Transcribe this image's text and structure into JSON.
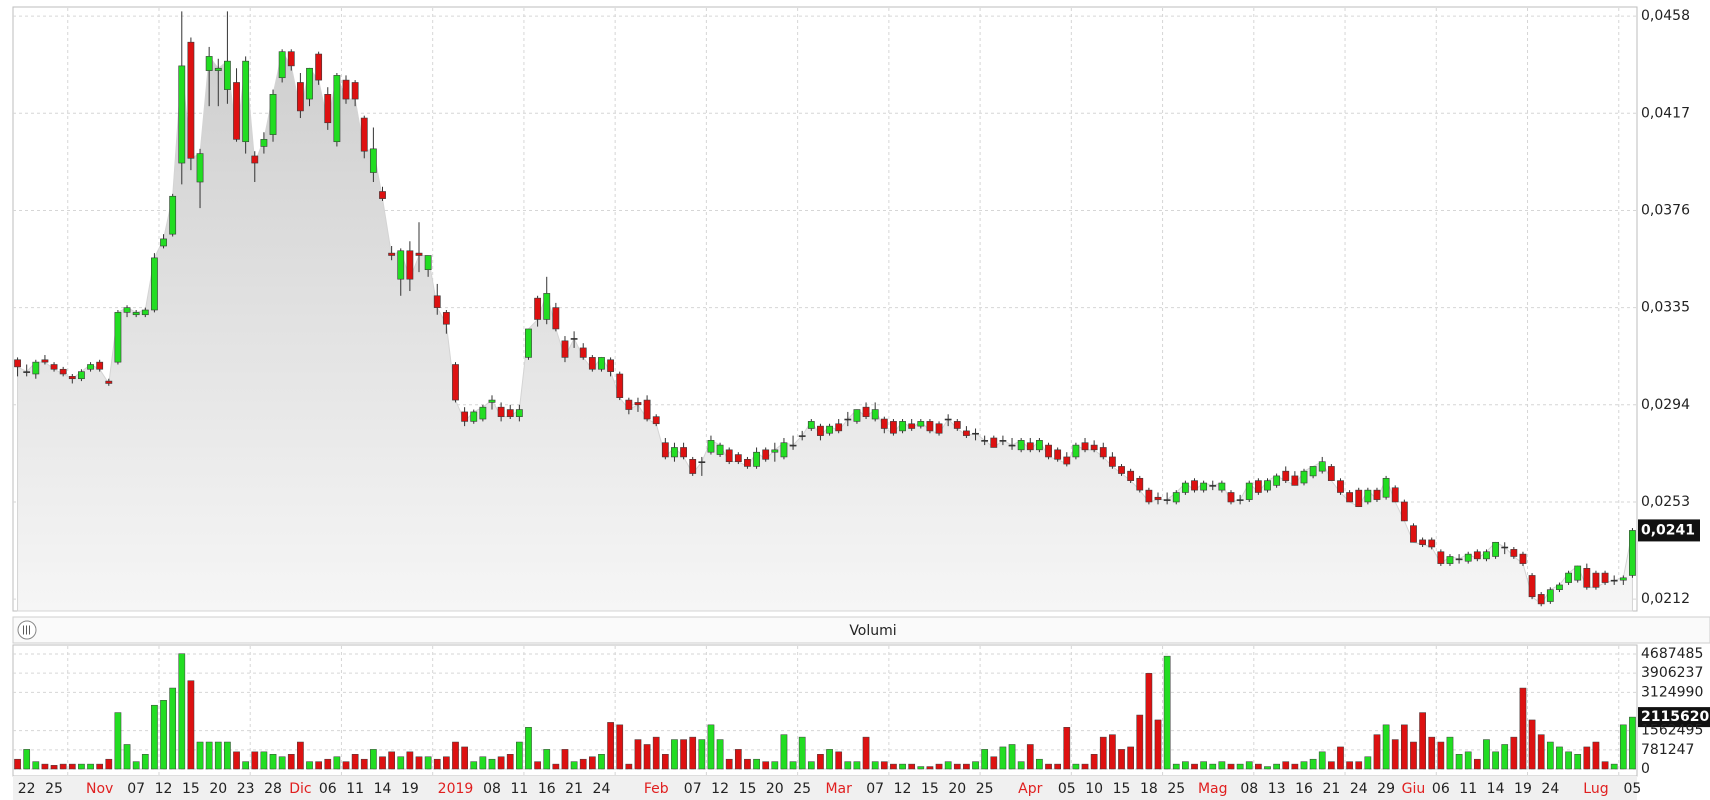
{
  "chart_data": [
    {
      "type": "candlestick",
      "ylim": [
        0.0207,
        0.0461
      ],
      "yticks": [
        {
          "value": 0.0212,
          "label": "0,0212"
        },
        {
          "value": 0.0253,
          "label": "0,0253"
        },
        {
          "value": 0.0294,
          "label": "0,0294"
        },
        {
          "value": 0.0335,
          "label": "0,0335"
        },
        {
          "value": 0.0376,
          "label": "0,0376"
        },
        {
          "value": 0.0417,
          "label": "0,0417"
        },
        {
          "value": 0.0458,
          "label": "0,0458"
        }
      ],
      "price_marker": {
        "value": 0.0241,
        "label": "0,0241"
      },
      "grid": true,
      "up_color": "#22dd22",
      "down_color": "#dd1111",
      "area_color": "#d4d4d4",
      "open": [
        0.0313,
        0.0308,
        0.0307,
        0.0313,
        0.0311,
        0.0309,
        0.0306,
        0.0305,
        0.0309,
        0.0312,
        0.0304,
        0.0312,
        0.0333,
        0.0332,
        0.0332,
        0.0334,
        0.0361,
        0.0366,
        0.0396,
        0.0447,
        0.0388,
        0.0435,
        0.0435,
        0.0427,
        0.043,
        0.0405,
        0.0399,
        0.0403,
        0.0408,
        0.0432,
        0.0443,
        0.043,
        0.0423,
        0.0442,
        0.0425,
        0.0405,
        0.0431,
        0.043,
        0.0415,
        0.0392,
        0.0384,
        0.0358,
        0.0347,
        0.0359,
        0.0358,
        0.0351,
        0.034,
        0.0333,
        0.0311,
        0.0291,
        0.0287,
        0.0288,
        0.0295,
        0.0293,
        0.0292,
        0.0289,
        0.0314,
        0.0339,
        0.033,
        0.0335,
        0.0321,
        0.0322,
        0.0318,
        0.0314,
        0.0309,
        0.0313,
        0.0307,
        0.0296,
        0.0295,
        0.0296,
        0.0289,
        0.0278,
        0.0272,
        0.0276,
        0.0271,
        0.027,
        0.0274,
        0.0273,
        0.0275,
        0.0273,
        0.0271,
        0.0268,
        0.0275,
        0.0274,
        0.0272,
        0.0277,
        0.0281,
        0.0284,
        0.0285,
        0.0282,
        0.0286,
        0.0288,
        0.0287,
        0.0293,
        0.0288,
        0.0288,
        0.0287,
        0.0283,
        0.0286,
        0.0285,
        0.0287,
        0.0286,
        0.0288,
        0.0287,
        0.0283,
        0.0282,
        0.0279,
        0.028,
        0.0279,
        0.0277,
        0.0275,
        0.0278,
        0.0275,
        0.0277,
        0.0275,
        0.0272,
        0.0272,
        0.0278,
        0.0277,
        0.0276,
        0.0272,
        0.0268,
        0.0266,
        0.0263,
        0.0258,
        0.0255,
        0.0254,
        0.0253,
        0.0257,
        0.0262,
        0.0258,
        0.026,
        0.0258,
        0.0257,
        0.0254,
        0.0254,
        0.0262,
        0.0258,
        0.026,
        0.0266,
        0.0264,
        0.0261,
        0.0264,
        0.0266,
        0.0268,
        0.0262,
        0.0257,
        0.0258,
        0.0253,
        0.0258,
        0.0255,
        0.0259,
        0.0253,
        0.0243,
        0.0237,
        0.0237,
        0.0232,
        0.0227,
        0.0229,
        0.0228,
        0.0232,
        0.0229,
        0.023,
        0.0234,
        0.0233,
        0.0231,
        0.0222,
        0.0214,
        0.0211,
        0.0216,
        0.0219,
        0.022,
        0.0225,
        0.0223,
        0.0223,
        0.022,
        0.022,
        0.0222
      ],
      "high": [
        0.0314,
        0.0311,
        0.0313,
        0.0315,
        0.0312,
        0.031,
        0.0307,
        0.0309,
        0.0312,
        0.0313,
        0.0305,
        0.0334,
        0.0336,
        0.0334,
        0.0335,
        0.0358,
        0.0366,
        0.0383,
        0.046,
        0.0449,
        0.0402,
        0.0445,
        0.044,
        0.046,
        0.0436,
        0.0441,
        0.0401,
        0.0409,
        0.0427,
        0.0444,
        0.0444,
        0.0434,
        0.0436,
        0.0443,
        0.0428,
        0.0434,
        0.0433,
        0.0431,
        0.0416,
        0.0411,
        0.0386,
        0.0361,
        0.036,
        0.0363,
        0.0371,
        0.0357,
        0.0345,
        0.0334,
        0.0312,
        0.0293,
        0.0292,
        0.0294,
        0.0298,
        0.0295,
        0.0294,
        0.0294,
        0.0326,
        0.034,
        0.0348,
        0.0337,
        0.0323,
        0.0325,
        0.032,
        0.0315,
        0.0314,
        0.0314,
        0.0308,
        0.0297,
        0.0297,
        0.0298,
        0.029,
        0.028,
        0.0278,
        0.0278,
        0.0272,
        0.0272,
        0.0281,
        0.0278,
        0.0276,
        0.0274,
        0.0272,
        0.0276,
        0.0276,
        0.0278,
        0.028,
        0.0281,
        0.0283,
        0.0288,
        0.0286,
        0.0286,
        0.0288,
        0.0291,
        0.0292,
        0.0295,
        0.0295,
        0.0289,
        0.0288,
        0.0288,
        0.0288,
        0.0288,
        0.0288,
        0.0287,
        0.029,
        0.0288,
        0.0285,
        0.0284,
        0.0281,
        0.0281,
        0.0281,
        0.028,
        0.028,
        0.028,
        0.028,
        0.0278,
        0.0276,
        0.0274,
        0.0278,
        0.028,
        0.0279,
        0.0278,
        0.0274,
        0.0269,
        0.0267,
        0.0264,
        0.0259,
        0.0257,
        0.0257,
        0.0258,
        0.0262,
        0.0263,
        0.0262,
        0.0262,
        0.0262,
        0.0258,
        0.0256,
        0.0262,
        0.0263,
        0.0263,
        0.0265,
        0.0268,
        0.0266,
        0.0267,
        0.0268,
        0.0272,
        0.0269,
        0.0263,
        0.0258,
        0.0259,
        0.0259,
        0.0259,
        0.0264,
        0.026,
        0.0254,
        0.0244,
        0.0238,
        0.0238,
        0.0233,
        0.0231,
        0.0231,
        0.0232,
        0.0233,
        0.0233,
        0.0236,
        0.0236,
        0.0234,
        0.0232,
        0.0223,
        0.0215,
        0.0217,
        0.0219,
        0.0224,
        0.0226,
        0.0227,
        0.0224,
        0.0224,
        0.0222,
        0.0222,
        0.0242
      ],
      "low": [
        0.0306,
        0.0306,
        0.0305,
        0.0311,
        0.0308,
        0.0306,
        0.0303,
        0.0304,
        0.0308,
        0.0308,
        0.0302,
        0.0311,
        0.0331,
        0.0331,
        0.0331,
        0.0333,
        0.036,
        0.0365,
        0.0387,
        0.0393,
        0.0377,
        0.042,
        0.042,
        0.0421,
        0.0405,
        0.04,
        0.0388,
        0.04,
        0.0405,
        0.043,
        0.0435,
        0.0415,
        0.042,
        0.0429,
        0.041,
        0.0403,
        0.0421,
        0.042,
        0.0398,
        0.0388,
        0.038,
        0.0355,
        0.034,
        0.0342,
        0.035,
        0.0348,
        0.0332,
        0.0324,
        0.0295,
        0.0285,
        0.0286,
        0.0287,
        0.0292,
        0.0287,
        0.0288,
        0.0287,
        0.0313,
        0.0327,
        0.0328,
        0.0325,
        0.0312,
        0.0318,
        0.0313,
        0.0308,
        0.0308,
        0.0306,
        0.0296,
        0.029,
        0.0291,
        0.0287,
        0.0285,
        0.0271,
        0.027,
        0.0271,
        0.0264,
        0.0264,
        0.0273,
        0.0272,
        0.0269,
        0.0269,
        0.0267,
        0.0267,
        0.027,
        0.027,
        0.0271,
        0.0275,
        0.0279,
        0.0283,
        0.0279,
        0.0281,
        0.0282,
        0.0285,
        0.0286,
        0.0288,
        0.0287,
        0.0282,
        0.0281,
        0.0282,
        0.0283,
        0.0284,
        0.0282,
        0.0281,
        0.0285,
        0.0283,
        0.028,
        0.0279,
        0.0277,
        0.0276,
        0.0277,
        0.0275,
        0.0274,
        0.0274,
        0.0274,
        0.0271,
        0.027,
        0.0268,
        0.0271,
        0.0274,
        0.0274,
        0.0271,
        0.0267,
        0.0264,
        0.0261,
        0.0257,
        0.0252,
        0.0252,
        0.0252,
        0.0252,
        0.0256,
        0.0257,
        0.0257,
        0.0258,
        0.0257,
        0.0252,
        0.0252,
        0.0253,
        0.0256,
        0.0257,
        0.0259,
        0.0261,
        0.026,
        0.026,
        0.0263,
        0.0265,
        0.0262,
        0.0256,
        0.0253,
        0.0251,
        0.0252,
        0.0253,
        0.0254,
        0.0253,
        0.0245,
        0.0236,
        0.0234,
        0.0233,
        0.0226,
        0.0226,
        0.0227,
        0.0227,
        0.0228,
        0.0228,
        0.0229,
        0.0231,
        0.0229,
        0.0226,
        0.0212,
        0.0209,
        0.021,
        0.0215,
        0.0218,
        0.0219,
        0.0216,
        0.0216,
        0.0218,
        0.0218,
        0.0218,
        0.0221
      ],
      "close": [
        0.031,
        0.0308,
        0.0312,
        0.0312,
        0.0309,
        0.0307,
        0.0305,
        0.0308,
        0.0311,
        0.0309,
        0.0303,
        0.0333,
        0.0335,
        0.0333,
        0.0334,
        0.0356,
        0.0364,
        0.0382,
        0.0437,
        0.0398,
        0.04,
        0.0441,
        0.0436,
        0.0439,
        0.0406,
        0.0439,
        0.0396,
        0.0406,
        0.0425,
        0.0443,
        0.0437,
        0.0418,
        0.0436,
        0.0431,
        0.0413,
        0.0433,
        0.0423,
        0.0423,
        0.0401,
        0.0402,
        0.0381,
        0.0357,
        0.0359,
        0.0347,
        0.0357,
        0.0357,
        0.0335,
        0.0328,
        0.0296,
        0.0287,
        0.0291,
        0.0293,
        0.0296,
        0.0289,
        0.0289,
        0.0292,
        0.0326,
        0.033,
        0.0341,
        0.0326,
        0.0314,
        0.0322,
        0.0314,
        0.0309,
        0.0314,
        0.0308,
        0.0297,
        0.0292,
        0.0294,
        0.0288,
        0.0286,
        0.0272,
        0.0276,
        0.0272,
        0.0265,
        0.027,
        0.0279,
        0.0277,
        0.027,
        0.027,
        0.0268,
        0.0274,
        0.0271,
        0.0275,
        0.0278,
        0.0277,
        0.0281,
        0.0287,
        0.0281,
        0.0285,
        0.0283,
        0.0288,
        0.0292,
        0.0289,
        0.0292,
        0.0284,
        0.0282,
        0.0287,
        0.0284,
        0.0287,
        0.0283,
        0.0282,
        0.0288,
        0.0284,
        0.0281,
        0.0282,
        0.0279,
        0.0276,
        0.0279,
        0.0277,
        0.0279,
        0.0275,
        0.0279,
        0.0272,
        0.0271,
        0.0269,
        0.0277,
        0.0275,
        0.0275,
        0.0272,
        0.0268,
        0.0265,
        0.0262,
        0.0258,
        0.0253,
        0.0254,
        0.0254,
        0.0257,
        0.0261,
        0.0258,
        0.0261,
        0.026,
        0.0261,
        0.0253,
        0.0254,
        0.0261,
        0.0257,
        0.0262,
        0.0264,
        0.0262,
        0.026,
        0.0266,
        0.0268,
        0.027,
        0.0262,
        0.0257,
        0.0253,
        0.0251,
        0.0258,
        0.0254,
        0.0263,
        0.0253,
        0.0245,
        0.0236,
        0.0235,
        0.0234,
        0.0227,
        0.023,
        0.0229,
        0.0231,
        0.0229,
        0.0232,
        0.0236,
        0.0234,
        0.023,
        0.0227,
        0.0213,
        0.021,
        0.0216,
        0.0218,
        0.0223,
        0.0226,
        0.0217,
        0.0217,
        0.0219,
        0.022,
        0.0221,
        0.0241
      ]
    },
    {
      "type": "bar",
      "title": "Volumi",
      "ylim": [
        -285000,
        5054000
      ],
      "yticks": [
        0,
        781247,
        1562495,
        3124990,
        3906237,
        4687485
      ],
      "volume_marker": {
        "value": 2115620,
        "label": "2115620"
      },
      "grid": true,
      "categories": [
        null,
        "22",
        null,
        null,
        "25",
        null,
        null,
        null,
        null,
        "Nov",
        null,
        null,
        null,
        "07",
        null,
        null,
        "12",
        null,
        null,
        "15",
        null,
        null,
        "20",
        null,
        null,
        "23",
        null,
        null,
        "28",
        null,
        null,
        "Dic",
        null,
        null,
        "06",
        null,
        null,
        "11",
        null,
        null,
        "14",
        null,
        null,
        "19",
        null,
        null,
        null,
        null,
        "2019",
        null,
        null,
        null,
        "08",
        null,
        null,
        "11",
        null,
        null,
        "16",
        null,
        null,
        "21",
        null,
        null,
        "24",
        null,
        null,
        null,
        null,
        null,
        "Feb",
        null,
        null,
        null,
        "07",
        null,
        null,
        "12",
        null,
        null,
        "15",
        null,
        null,
        "20",
        null,
        null,
        "25",
        null,
        null,
        null,
        "Mar",
        null,
        null,
        null,
        "07",
        null,
        null,
        "12",
        null,
        null,
        "15",
        null,
        null,
        "20",
        null,
        null,
        "25",
        null,
        null,
        null,
        null,
        "Apr",
        null,
        null,
        null,
        "05",
        null,
        null,
        "10",
        null,
        null,
        "15",
        null,
        null,
        "18",
        null,
        null,
        "25",
        null,
        null,
        null,
        "Mag",
        null,
        null,
        null,
        "08",
        null,
        null,
        "13",
        null,
        null,
        "16",
        null,
        null,
        "21",
        null,
        null,
        "24",
        null,
        null,
        "29",
        null,
        null,
        "Giu",
        null,
        null,
        "06",
        null,
        null,
        "11",
        null,
        null,
        "14",
        null,
        null,
        "19",
        null,
        null,
        "24",
        null,
        null,
        null,
        null,
        "Lug",
        null,
        null,
        null,
        "05"
      ],
      "values": [
        400000,
        800000,
        300000,
        200000,
        150000,
        200000,
        200000,
        200000,
        200000,
        200000,
        400000,
        2300000,
        1000000,
        300000,
        600000,
        2600000,
        2800000,
        3300000,
        4700000,
        3600000,
        1100000,
        1100000,
        1100000,
        1100000,
        700000,
        300000,
        700000,
        700000,
        600000,
        500000,
        600000,
        1100000,
        300000,
        300000,
        400000,
        500000,
        300000,
        600000,
        400000,
        800000,
        500000,
        700000,
        500000,
        700000,
        500000,
        500000,
        400000,
        500000,
        1100000,
        900000,
        300000,
        500000,
        400000,
        500000,
        600000,
        1100000,
        1700000,
        300000,
        800000,
        200000,
        800000,
        300000,
        400000,
        500000,
        600000,
        1900000,
        1800000,
        200000,
        1200000,
        1000000,
        1300000,
        600000,
        1200000,
        1200000,
        1300000,
        1200000,
        1800000,
        1200000,
        400000,
        800000,
        400000,
        400000,
        300000,
        300000,
        1400000,
        300000,
        1300000,
        300000,
        600000,
        800000,
        700000,
        300000,
        300000,
        1300000,
        300000,
        300000,
        200000,
        200000,
        200000,
        100000,
        100000,
        200000,
        300000,
        200000,
        200000,
        300000,
        800000,
        500000,
        900000,
        1000000,
        300000,
        1000000,
        400000,
        200000,
        200000,
        1700000,
        200000,
        200000,
        600000,
        1300000,
        1400000,
        800000,
        900000,
        2200000,
        3900000,
        2000000,
        4600000,
        200000,
        300000,
        200000,
        300000,
        200000,
        300000,
        200000,
        200000,
        300000,
        200000,
        100000,
        200000,
        300000,
        200000,
        300000,
        400000,
        700000,
        300000,
        900000,
        300000,
        300000,
        500000,
        1400000,
        1800000,
        1200000,
        1800000,
        1100000,
        2300000,
        1300000,
        1100000,
        1300000,
        600000,
        700000,
        400000,
        1200000,
        700000,
        1000000,
        1300000,
        3300000,
        2000000,
        1400000,
        1100000,
        900000,
        700000,
        600000,
        900000,
        1100000,
        300000,
        200000,
        1800000,
        2115620
      ]
    }
  ]
}
